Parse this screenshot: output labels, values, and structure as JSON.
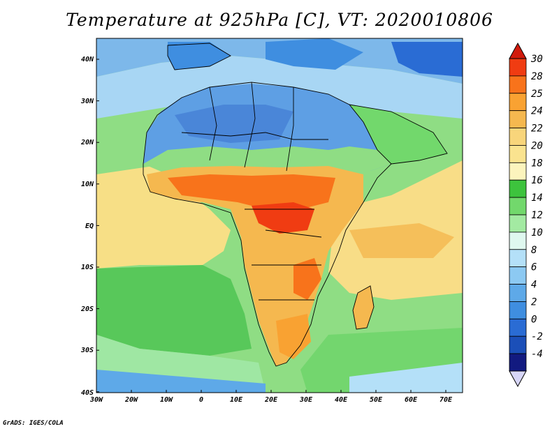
{
  "title": "Temperature at 925hPa [C], VT: 2020010806",
  "credit": "GrADS: IGES/COLA",
  "lat_labels": [
    "40N",
    "30N",
    "20N",
    "10N",
    "EQ",
    "10S",
    "20S",
    "30S",
    "40S"
  ],
  "lon_labels": [
    "30W",
    "20W",
    "10W",
    "0",
    "10E",
    "20E",
    "30E",
    "40E",
    "50E",
    "60E",
    "70E"
  ],
  "colorbar": {
    "labels": [
      "30",
      "28",
      "25",
      "24",
      "22",
      "20",
      "18",
      "16",
      "14",
      "12",
      "10",
      "8",
      "6",
      "4",
      "2",
      "0",
      "-2",
      "-4"
    ],
    "colors": [
      "#f03c12",
      "#f8731b",
      "#f9a232",
      "#f5b84f",
      "#f8d57b",
      "#fae38f",
      "#fcf4bd",
      "#3dc33d",
      "#72d86c",
      "#a3eaa2",
      "#dff8ef",
      "#b4e0f8",
      "#8cc9f2",
      "#5ea9e8",
      "#3f8ee0",
      "#2a6cd4",
      "#1b4fb8",
      "#121a80"
    ],
    "top_arrow_color": "#d11a0c",
    "bottom_arrow_color": "#d7d6f8"
  }
}
